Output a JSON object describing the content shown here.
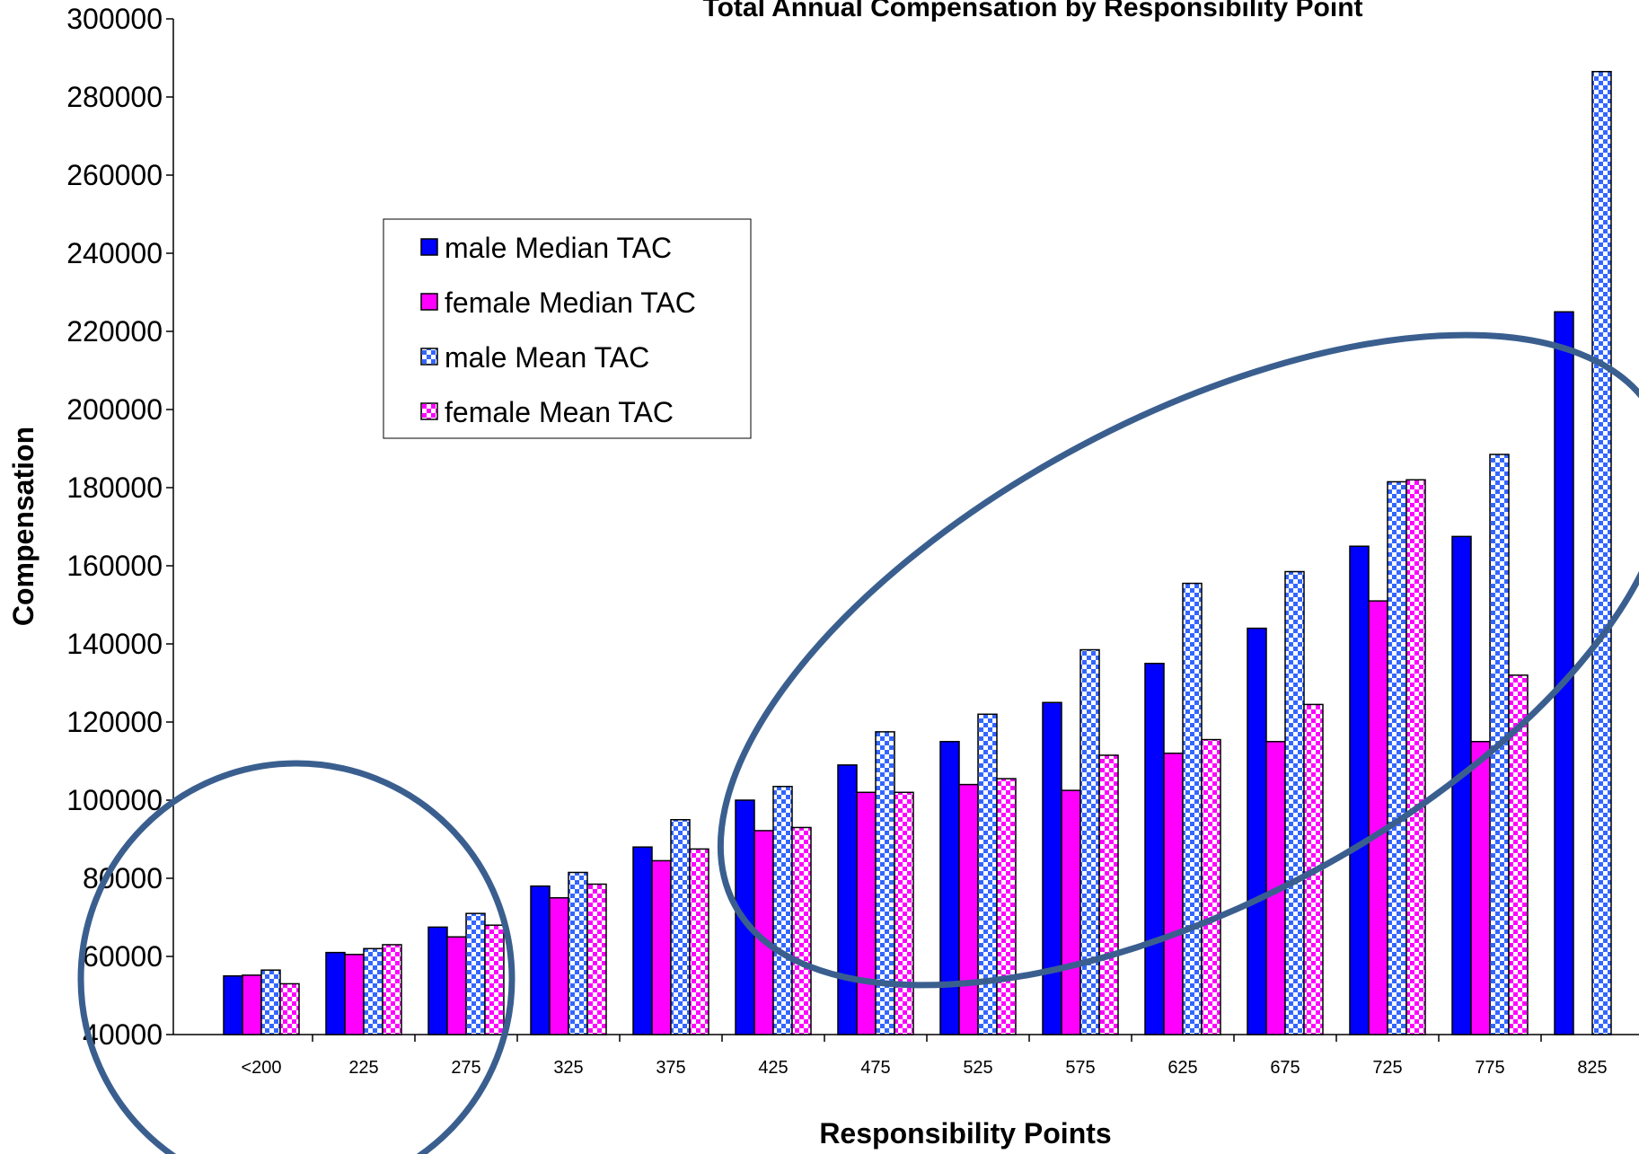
{
  "chart_data": {
    "type": "bar",
    "title": "Total Annual Compensation by Responsibility Point",
    "xlabel": "Responsibility Points",
    "ylabel": "Compensation",
    "ylim": [
      40000,
      300000
    ],
    "yticks": [
      "40000",
      "60000",
      "80000",
      "100000",
      "120000",
      "140000",
      "160000",
      "180000",
      "200000",
      "220000",
      "240000",
      "260000",
      "280000",
      "300000"
    ],
    "categories": [
      "<200",
      "225",
      "275",
      "325",
      "375",
      "425",
      "475",
      "525",
      "575",
      "625",
      "675",
      "725",
      "775",
      "825"
    ],
    "legend_position": "upper-left",
    "series": [
      {
        "name": "male Median TAC",
        "color": "#0000ff",
        "pattern": "solid",
        "values": [
          55000,
          61000,
          67500,
          78000,
          88000,
          100000,
          109000,
          115000,
          125000,
          135000,
          144000,
          165000,
          167500,
          225000
        ]
      },
      {
        "name": "female Median TAC",
        "color": "#ff00ff",
        "pattern": "solid",
        "values": [
          55200,
          60500,
          65000,
          75000,
          84500,
          92200,
          102000,
          104000,
          102500,
          112000,
          115000,
          151000,
          115000,
          null
        ]
      },
      {
        "name": "male Mean TAC",
        "color": "#3366ff",
        "pattern": "checker",
        "values": [
          56500,
          62000,
          71000,
          81500,
          95000,
          103500,
          117500,
          122000,
          138500,
          155500,
          158500,
          181500,
          188500,
          286500
        ]
      },
      {
        "name": "female Mean TAC",
        "color": "#ff00ff",
        "pattern": "checker",
        "values": [
          53000,
          63000,
          68000,
          78500,
          87500,
          93000,
          102000,
          105500,
          111500,
          115500,
          124500,
          182000,
          132000,
          null
        ]
      }
    ],
    "grid": false
  }
}
